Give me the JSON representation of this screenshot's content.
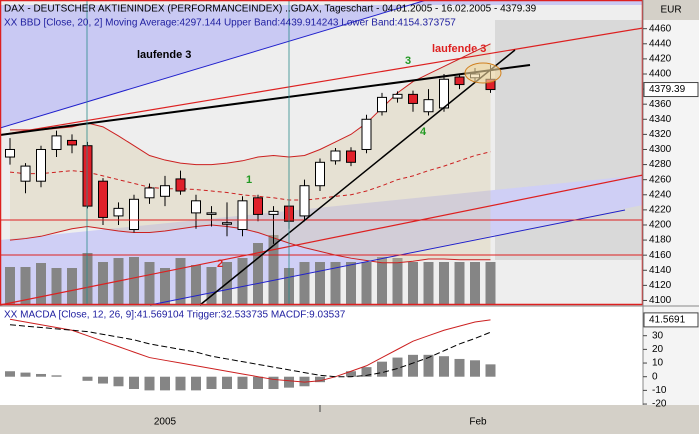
{
  "header": "DAX - DEUTSCHER AKTIENINDEX (PERFORMANCEINDEX) ..GDAX, Tageschart - 04.01.2005 - 16.02.2005 - 4379.39",
  "currency": "EUR",
  "chart_data": [
    {
      "type": "candlestick",
      "legend": "XX BBD [Close, 20, 2] Moving Average:4297.144 Upper Band:4439.914243 Lower Band:4154.373757",
      "open": [
        4290,
        4258,
        4258,
        4300,
        4312,
        4305,
        4258,
        4212,
        4194,
        4236,
        4238,
        4261,
        4216,
        4214,
        4201,
        4194,
        4236,
        4214,
        4225,
        4212,
        4252,
        4285,
        4298,
        4300,
        4350,
        4368,
        4373,
        4350,
        4355,
        4396,
        4395,
        4393
      ],
      "high": [
        4315,
        4282,
        4305,
        4325,
        4320,
        4310,
        4262,
        4230,
        4240,
        4255,
        4265,
        4272,
        4240,
        4225,
        4230,
        4238,
        4240,
        4225,
        4232,
        4260,
        4288,
        4302,
        4303,
        4346,
        4375,
        4377,
        4378,
        4380,
        4400,
        4400,
        4408,
        4412
      ],
      "low": [
        4280,
        4242,
        4250,
        4290,
        4295,
        4222,
        4200,
        4200,
        4190,
        4228,
        4225,
        4240,
        4195,
        4198,
        4185,
        4185,
        4205,
        4175,
        4195,
        4205,
        4245,
        4280,
        4278,
        4295,
        4345,
        4362,
        4350,
        4345,
        4350,
        4380,
        4388,
        4375
      ],
      "close": [
        4300,
        4278,
        4300,
        4318,
        4306,
        4225,
        4210,
        4222,
        4234,
        4249,
        4252,
        4245,
        4232,
        4216,
        4203,
        4232,
        4214,
        4218,
        4205,
        4252,
        4283,
        4298,
        4283,
        4340,
        4369,
        4373,
        4361,
        4366,
        4393,
        4386,
        4400,
        4379.39
      ],
      "up_color": "#ffffff",
      "down_color": "#e0202a",
      "upper_band": [
        4326,
        4326,
        4326,
        4328,
        4330,
        4335,
        4330,
        4318,
        4305,
        4292,
        4286,
        4282,
        4280,
        4280,
        4282,
        4285,
        4290,
        4292,
        4290,
        4292,
        4300,
        4310,
        4320,
        4335,
        4355,
        4375,
        4390,
        4400,
        4410,
        4420,
        4430,
        4440
      ],
      "middle_band": [
        4270,
        4268,
        4268,
        4270,
        4272,
        4270,
        4265,
        4260,
        4255,
        4250,
        4248,
        4248,
        4247,
        4245,
        4243,
        4240,
        4238,
        4236,
        4233,
        4233,
        4235,
        4238,
        4240,
        4245,
        4252,
        4260,
        4265,
        4272,
        4278,
        4285,
        4292,
        4297
      ],
      "lower_band": [
        4180,
        4182,
        4185,
        4190,
        4195,
        4198,
        4195,
        4192,
        4190,
        4190,
        4192,
        4195,
        4198,
        4200,
        4198,
        4195,
        4190,
        4183,
        4176,
        4170,
        4165,
        4160,
        4156,
        4153,
        4150,
        4150,
        4152,
        4155,
        4155,
        4154,
        4154,
        4154
      ],
      "band_color": "#cc2020",
      "volume": [
        38,
        38,
        42,
        37,
        37,
        52,
        43,
        47,
        48,
        43,
        37,
        47,
        40,
        38,
        43,
        47,
        62,
        70,
        37,
        43,
        43,
        43,
        43,
        43,
        48,
        47,
        43,
        43,
        43,
        43,
        43,
        43
      ],
      "vlim": [
        0,
        100
      ],
      "volume_color": "#858585",
      "ylim": [
        4094,
        4498
      ],
      "yticks": [
        4100,
        4120,
        4140,
        4160,
        4180,
        4200,
        4220,
        4240,
        4260,
        4280,
        4300,
        4320,
        4340,
        4360,
        4380,
        4400,
        4420,
        4440,
        4460
      ],
      "last_value": 4379.39,
      "annotations": [
        {
          "text": "laufende 3",
          "color": "#000000"
        },
        {
          "text": "laufende 3",
          "color": "#dd2020"
        },
        {
          "text": "1",
          "color": "#229922"
        },
        {
          "text": "2",
          "color": "#dd2020"
        },
        {
          "text": "3",
          "color": "#229922"
        },
        {
          "text": "4",
          "color": "#229922"
        }
      ],
      "x_labels": [
        "2005",
        "Feb"
      ]
    },
    {
      "type": "macd",
      "legend": "XX MACDA [Close, 12, 26, 9]:41.569104 Trigger:32.533735 MACDF:9.03537",
      "macd": [
        42,
        40,
        38,
        36,
        34,
        30,
        26,
        22,
        18,
        14,
        12,
        10,
        8,
        6,
        4,
        2,
        0,
        -2,
        -3,
        -4,
        -3,
        0,
        4,
        8,
        14,
        20,
        26,
        30,
        34,
        37,
        40,
        41.569104
      ],
      "trigger": [
        38,
        37,
        36,
        35,
        34,
        33,
        31,
        29,
        27,
        24,
        22,
        20,
        18,
        15,
        13,
        11,
        9,
        7,
        5,
        3,
        1,
        0,
        0,
        1,
        3,
        6,
        10,
        14,
        19,
        24,
        28,
        32.533735
      ],
      "histogram": [
        4,
        3,
        2,
        1,
        0,
        -3,
        -5,
        -7,
        -9,
        -10,
        -10,
        -10,
        -10,
        -9,
        -9,
        -9,
        -9,
        -9,
        -8,
        -7,
        -4,
        0,
        4,
        7,
        11,
        14,
        16,
        16,
        15,
        13,
        12,
        9.03537
      ],
      "macd_color": "#cc2020",
      "trigger_color": "#000000",
      "histogram_color": "#858585",
      "last_value": 41.5691,
      "ylim": [
        -20.7,
        51
      ],
      "yticks": [
        -20,
        -10,
        0,
        10,
        20,
        30
      ]
    }
  ]
}
